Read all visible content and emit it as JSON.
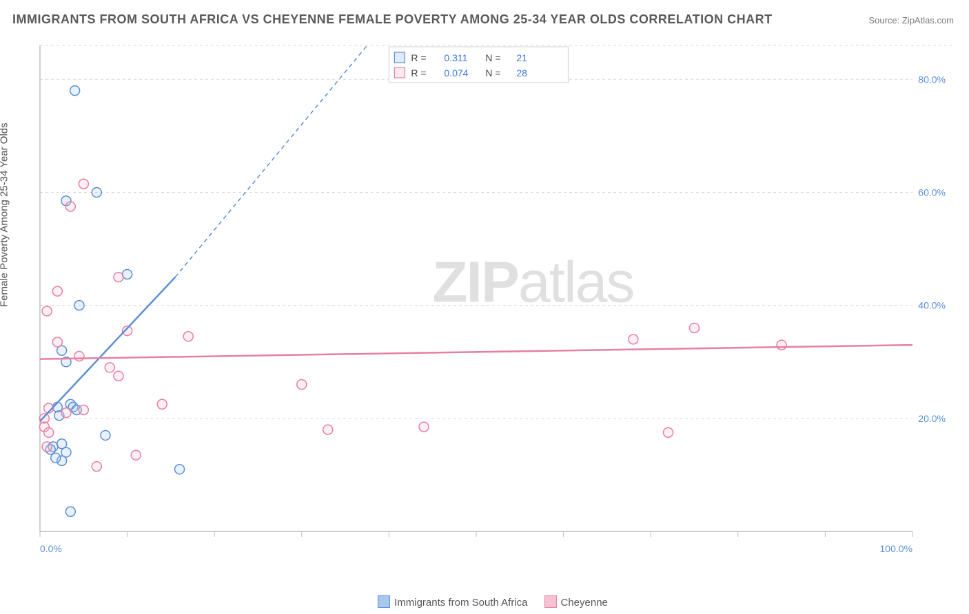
{
  "title": "IMMIGRANTS FROM SOUTH AFRICA VS CHEYENNE FEMALE POVERTY AMONG 25-34 YEAR OLDS CORRELATION CHART",
  "source": "Source: ZipAtlas.com",
  "watermark_bold": "ZIP",
  "watermark_rest": "atlas",
  "chart": {
    "type": "scatter",
    "background_color": "#ffffff",
    "grid_color": "#d9d9d9",
    "axis_color": "#bfbfbf",
    "tick_label_color": "#5b8fd6",
    "xlim": [
      0,
      100
    ],
    "ylim": [
      0,
      86
    ],
    "xticks": [
      0,
      10,
      20,
      30,
      40,
      50,
      60,
      70,
      80,
      90,
      100
    ],
    "xtick_labels_shown": {
      "0": "0.0%",
      "100": "100.0%"
    },
    "yticks": [
      20,
      40,
      60,
      80
    ],
    "ytick_labels": {
      "20": "20.0%",
      "40": "40.0%",
      "60": "60.0%",
      "80": "80.0%"
    },
    "ylabel": "Female Poverty Among 25-34 Year Olds",
    "marker_radius": 7,
    "legend_top": {
      "rows": [
        {
          "swatch_stroke": "#5b8fd6",
          "swatch_fill": "#a9c6ec",
          "r_label": "R =",
          "r_value": "0.311",
          "n_label": "N =",
          "n_value": "21"
        },
        {
          "swatch_stroke": "#e87ea2",
          "swatch_fill": "#f6c2d1",
          "r_label": "R =",
          "r_value": "0.074",
          "n_label": "N =",
          "n_value": "28"
        }
      ]
    },
    "series": [
      {
        "name": "Immigrants from South Africa",
        "stroke": "#5b8fd6",
        "fill": "#a9c6ec",
        "points": [
          [
            4.0,
            78.0
          ],
          [
            6.5,
            60.0
          ],
          [
            3.0,
            58.5
          ],
          [
            10.0,
            45.5
          ],
          [
            4.5,
            40.0
          ],
          [
            2.5,
            32.0
          ],
          [
            3.5,
            22.5
          ],
          [
            3.8,
            22.0
          ],
          [
            4.2,
            21.5
          ],
          [
            2.0,
            22.0
          ],
          [
            2.2,
            20.5
          ],
          [
            7.5,
            17.0
          ],
          [
            1.5,
            15.0
          ],
          [
            2.5,
            15.5
          ],
          [
            3.0,
            14.0
          ],
          [
            2.5,
            12.5
          ],
          [
            1.8,
            13.0
          ],
          [
            1.2,
            14.5
          ],
          [
            16.0,
            11.0
          ],
          [
            3.5,
            3.5
          ],
          [
            3.0,
            30.0
          ]
        ],
        "trend": {
          "x1": 0,
          "y1": 19.5,
          "x2": 15.5,
          "y2": 45.0,
          "ext_x2": 37.5,
          "ext_y2": 86.0
        }
      },
      {
        "name": "Cheyenne",
        "stroke": "#e87ea2",
        "fill": "#f6c2d1",
        "points": [
          [
            5.0,
            61.5
          ],
          [
            3.5,
            57.5
          ],
          [
            9.0,
            45.0
          ],
          [
            2.0,
            42.5
          ],
          [
            0.8,
            39.0
          ],
          [
            10.0,
            35.5
          ],
          [
            17.0,
            34.5
          ],
          [
            2.0,
            33.5
          ],
          [
            4.5,
            31.0
          ],
          [
            68.0,
            34.0
          ],
          [
            75.0,
            36.0
          ],
          [
            85.0,
            33.0
          ],
          [
            8.0,
            29.0
          ],
          [
            9.0,
            27.5
          ],
          [
            30.0,
            26.0
          ],
          [
            14.0,
            22.5
          ],
          [
            1.0,
            21.8
          ],
          [
            5.0,
            21.5
          ],
          [
            3.0,
            21.0
          ],
          [
            0.5,
            20.0
          ],
          [
            44.0,
            18.5
          ],
          [
            33.0,
            18.0
          ],
          [
            72.0,
            17.5
          ],
          [
            0.5,
            18.5
          ],
          [
            1.0,
            17.5
          ],
          [
            6.5,
            11.5
          ],
          [
            11.0,
            13.5
          ],
          [
            0.8,
            15.0
          ]
        ],
        "trend": {
          "x1": 0,
          "y1": 30.5,
          "x2": 100,
          "y2": 33.0
        }
      }
    ],
    "bottom_legend": [
      {
        "swatch_stroke": "#5b8fd6",
        "swatch_fill": "#a9c6ec",
        "label": "Immigrants from South Africa"
      },
      {
        "swatch_stroke": "#e87ea2",
        "swatch_fill": "#f6c2d1",
        "label": "Cheyenne"
      }
    ]
  }
}
